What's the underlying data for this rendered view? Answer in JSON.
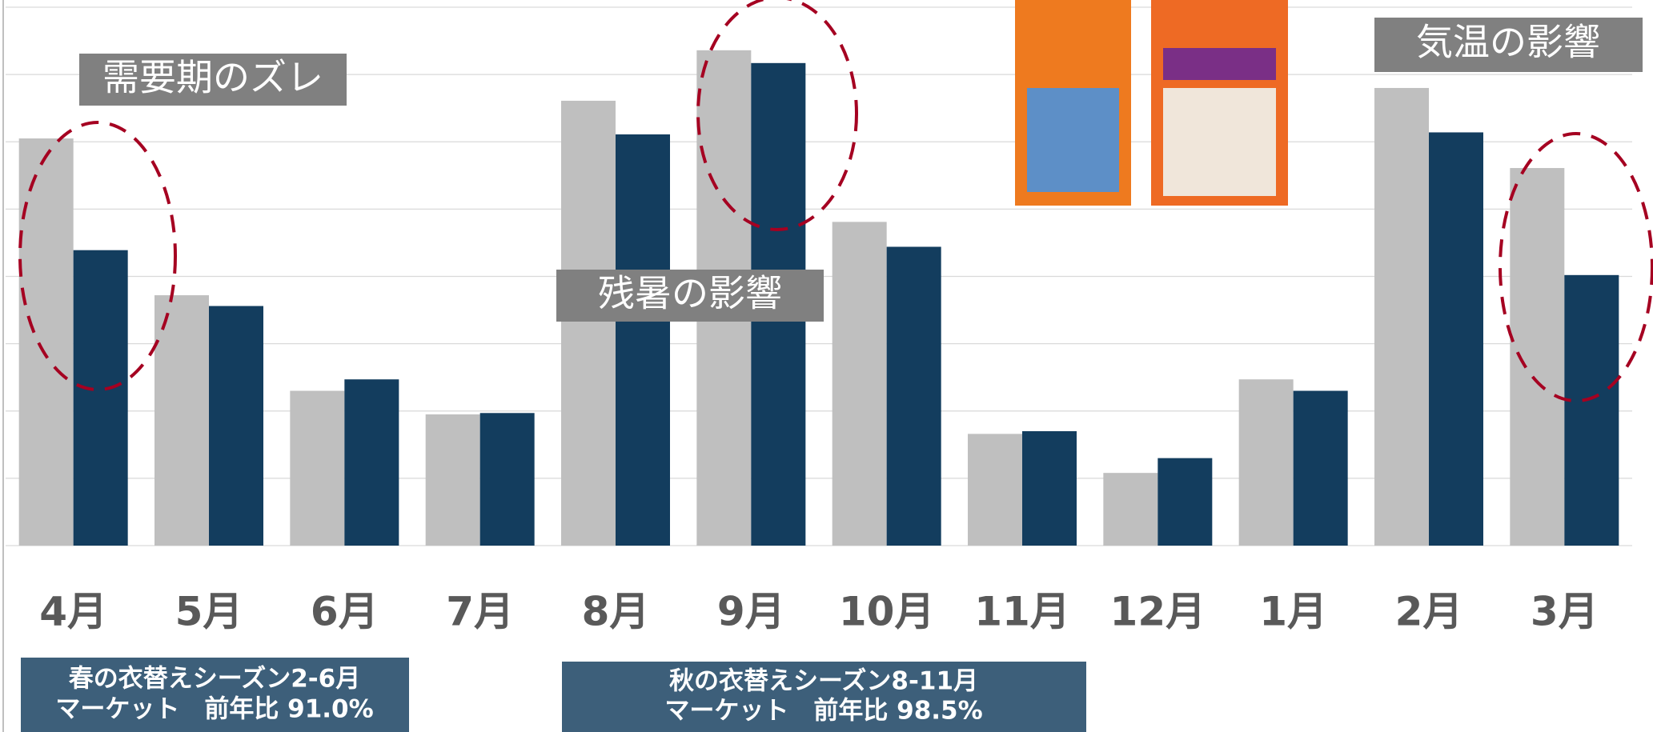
{
  "chart_data": {
    "type": "bar",
    "categories": [
      "4月",
      "5月",
      "6月",
      "7月",
      "8月",
      "9月",
      "10月",
      "11月",
      "12月",
      "1月",
      "2月",
      "3月"
    ],
    "series": [
      {
        "color": "#bfbfbf",
        "values": [
          6.05,
          3.72,
          2.3,
          1.95,
          6.61,
          7.36,
          4.81,
          1.66,
          1.08,
          2.47,
          6.8,
          5.61
        ]
      },
      {
        "color": "#133d5e",
        "values": [
          4.39,
          3.56,
          2.47,
          1.97,
          6.11,
          7.17,
          4.44,
          1.7,
          1.3,
          2.3,
          6.14,
          4.02
        ]
      }
    ],
    "ylim": [
      0,
      8
    ],
    "yticks": [
      0,
      1,
      2,
      3,
      4,
      5,
      6,
      7,
      8
    ],
    "grid": true,
    "annotations": [
      "需要期のズレ",
      "残暑の影響",
      "気温の影響"
    ],
    "notes": [
      [
        "春の衣替えシーズン2-6月",
        "マーケット　前年比 91.0%"
      ],
      [
        "秋の衣替えシーズン8-11月",
        "マーケット　前年比 98.5%"
      ]
    ]
  }
}
